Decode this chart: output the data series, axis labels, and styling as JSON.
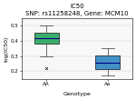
{
  "title": "IC50",
  "subtitle": "SNP: rs11258248, Gene: MCM10",
  "xlabel": "Genotype",
  "ylabel": "log(IC50)",
  "categories": [
    "AA",
    "Aa"
  ],
  "box_colors": [
    "#26a65b",
    "#2e86c1"
  ],
  "green_box": {
    "median": 0.42,
    "q1": 0.385,
    "q3": 0.455,
    "whislo": 0.3,
    "whishi": 0.5,
    "fliers": [
      0.22
    ]
  },
  "blue_box": {
    "median": 0.255,
    "q1": 0.215,
    "q3": 0.305,
    "whislo": 0.175,
    "whishi": 0.355,
    "fliers": []
  },
  "positions": [
    1,
    3
  ],
  "xlim": [
    0.2,
    3.8
  ],
  "ylim": [
    0.15,
    0.55
  ],
  "yticks": [
    0.2,
    0.3,
    0.4,
    0.5
  ],
  "background_color": "#ffffff",
  "plot_bg_color": "#f8f8f8",
  "title_fontsize": 5.0,
  "subtitle_fontsize": 4.2,
  "label_fontsize": 4.5,
  "tick_fontsize": 4.0,
  "box_width": 0.8
}
